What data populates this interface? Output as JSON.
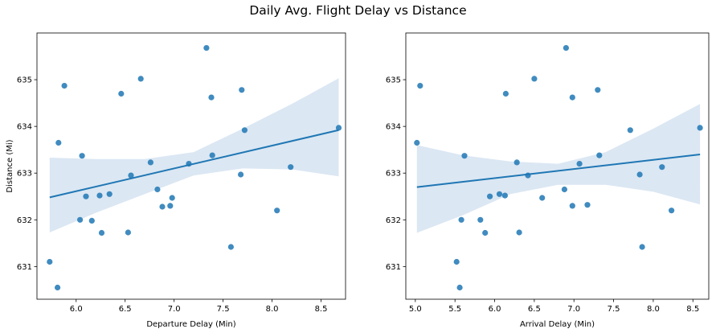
{
  "title": "Daily Avg. Flight Delay vs Distance",
  "chart_data": [
    {
      "type": "scatter",
      "regression": "linear with confidence band",
      "xlabel": "Departure Delay (Min)",
      "ylabel": "Distance (Mi)",
      "xlim": [
        5.6,
        8.75
      ],
      "ylim": [
        630.3,
        636.0
      ],
      "xticks": [
        "6.0",
        "6.5",
        "7.0",
        "7.5",
        "8.0",
        "8.5"
      ],
      "yticks": [
        "631",
        "632",
        "633",
        "634",
        "635"
      ],
      "color": "#1f77b4",
      "band_color": "#dbe7f3",
      "x": [
        5.73,
        5.81,
        5.82,
        5.88,
        6.04,
        6.06,
        6.1,
        6.16,
        6.24,
        6.26,
        6.34,
        6.46,
        6.53,
        6.56,
        6.66,
        6.76,
        6.83,
        6.88,
        6.96,
        6.98,
        7.15,
        7.33,
        7.38,
        7.39,
        7.58,
        7.68,
        7.69,
        7.72,
        8.05,
        8.19,
        8.68
      ],
      "y": [
        631.1,
        630.55,
        633.65,
        634.87,
        632.0,
        633.37,
        632.5,
        631.98,
        632.52,
        631.72,
        632.55,
        634.7,
        631.73,
        632.95,
        635.02,
        633.23,
        632.65,
        632.28,
        632.3,
        632.47,
        633.2,
        635.68,
        634.62,
        633.38,
        631.42,
        632.97,
        634.78,
        633.92,
        632.2,
        633.13,
        633.97
      ],
      "fit": {
        "x": [
          5.73,
          8.68
        ],
        "y": [
          632.48,
          633.92
        ]
      },
      "band": {
        "x": [
          5.73,
          6.2,
          6.7,
          7.2,
          7.7,
          8.2,
          8.68
        ],
        "upper": [
          633.33,
          633.3,
          633.3,
          633.45,
          633.95,
          634.48,
          635.03
        ],
        "lower": [
          631.73,
          632.15,
          632.55,
          632.95,
          633.1,
          633.08,
          632.93
        ]
      }
    },
    {
      "type": "scatter",
      "regression": "linear with confidence band",
      "xlabel": "Arrival Delay (Min)",
      "ylabel": "",
      "xlim": [
        4.88,
        8.7
      ],
      "ylim": [
        630.3,
        636.0
      ],
      "xticks": [
        "5.0",
        "5.5",
        "6.0",
        "6.5",
        "7.0",
        "7.5",
        "8.0",
        "8.5"
      ],
      "yticks": [
        "631",
        "632",
        "633",
        "634",
        "635"
      ],
      "color": "#1f77b4",
      "band_color": "#dbe7f3",
      "x": [
        5.02,
        5.06,
        5.52,
        5.56,
        5.58,
        5.62,
        5.82,
        5.88,
        5.94,
        6.06,
        6.13,
        6.14,
        6.28,
        6.31,
        6.42,
        6.5,
        6.6,
        6.88,
        6.9,
        6.98,
        6.98,
        7.07,
        7.17,
        7.3,
        7.32,
        7.71,
        7.83,
        7.86,
        8.11,
        8.23,
        8.59
      ],
      "y": [
        633.65,
        634.87,
        631.1,
        630.55,
        632.0,
        633.37,
        632.0,
        631.72,
        632.5,
        632.55,
        632.52,
        634.7,
        633.23,
        631.73,
        632.95,
        635.02,
        632.47,
        632.65,
        635.68,
        632.3,
        634.62,
        633.2,
        632.32,
        634.78,
        633.38,
        633.92,
        632.97,
        631.42,
        633.13,
        632.2,
        633.97
      ],
      "fit": {
        "x": [
          5.02,
          8.59
        ],
        "y": [
          632.7,
          633.4
        ]
      },
      "band": {
        "x": [
          5.02,
          5.6,
          6.2,
          6.8,
          7.4,
          8.0,
          8.59
        ],
        "upper": [
          633.6,
          633.38,
          633.25,
          633.2,
          633.45,
          633.95,
          634.48
        ],
        "lower": [
          631.72,
          632.1,
          632.55,
          632.75,
          632.75,
          632.6,
          632.33
        ]
      }
    }
  ]
}
